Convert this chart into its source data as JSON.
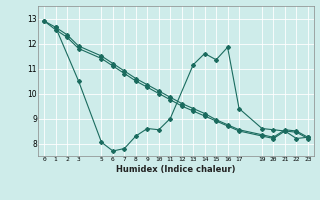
{
  "xlabel": "Humidex (Indice chaleur)",
  "background_color": "#ceecea",
  "line_color": "#1a6b5e",
  "xlim": [
    -0.5,
    23.5
  ],
  "ylim": [
    7.5,
    13.5
  ],
  "xtick_positions": [
    0,
    1,
    2,
    3,
    5,
    6,
    7,
    8,
    9,
    10,
    11,
    12,
    13,
    14,
    15,
    16,
    17,
    19,
    20,
    21,
    22,
    23
  ],
  "xtick_labels": [
    "0",
    "1",
    "2",
    "3",
    "5",
    "6",
    "7",
    "8",
    "9",
    "10",
    "11",
    "12",
    "13",
    "14",
    "15",
    "16",
    "17",
    "19",
    "20",
    "21",
    "22",
    "23"
  ],
  "yticks": [
    8,
    9,
    10,
    11,
    12,
    13
  ],
  "line1_x": [
    0,
    1,
    2,
    3,
    5,
    6,
    7,
    8,
    9,
    10,
    11,
    12,
    13,
    14,
    15,
    16,
    17,
    19,
    20,
    21,
    22,
    23
  ],
  "line1_y": [
    12.9,
    12.55,
    12.25,
    11.8,
    11.4,
    11.1,
    10.8,
    10.5,
    10.25,
    10.0,
    9.75,
    9.5,
    9.3,
    9.1,
    8.9,
    8.7,
    8.5,
    8.3,
    8.2,
    8.5,
    8.45,
    8.2
  ],
  "line2_x": [
    0,
    1,
    2,
    3,
    5,
    6,
    7,
    8,
    9,
    10,
    11,
    12,
    13,
    14,
    15,
    16,
    17,
    19,
    20,
    21,
    22,
    23
  ],
  "line2_y": [
    12.9,
    12.65,
    12.35,
    11.9,
    11.5,
    11.2,
    10.9,
    10.6,
    10.35,
    10.1,
    9.85,
    9.6,
    9.4,
    9.2,
    8.95,
    8.75,
    8.55,
    8.35,
    8.25,
    8.55,
    8.5,
    8.25
  ],
  "line3_x": [
    1,
    3,
    5,
    6,
    7,
    8,
    9,
    10,
    11,
    13,
    14,
    15,
    16,
    17,
    19,
    20,
    21,
    22,
    23
  ],
  "line3_y": [
    12.65,
    10.5,
    8.05,
    7.7,
    7.8,
    8.3,
    8.6,
    8.55,
    9.0,
    11.15,
    11.6,
    11.35,
    11.85,
    9.4,
    8.6,
    8.55,
    8.5,
    8.2,
    8.25
  ]
}
